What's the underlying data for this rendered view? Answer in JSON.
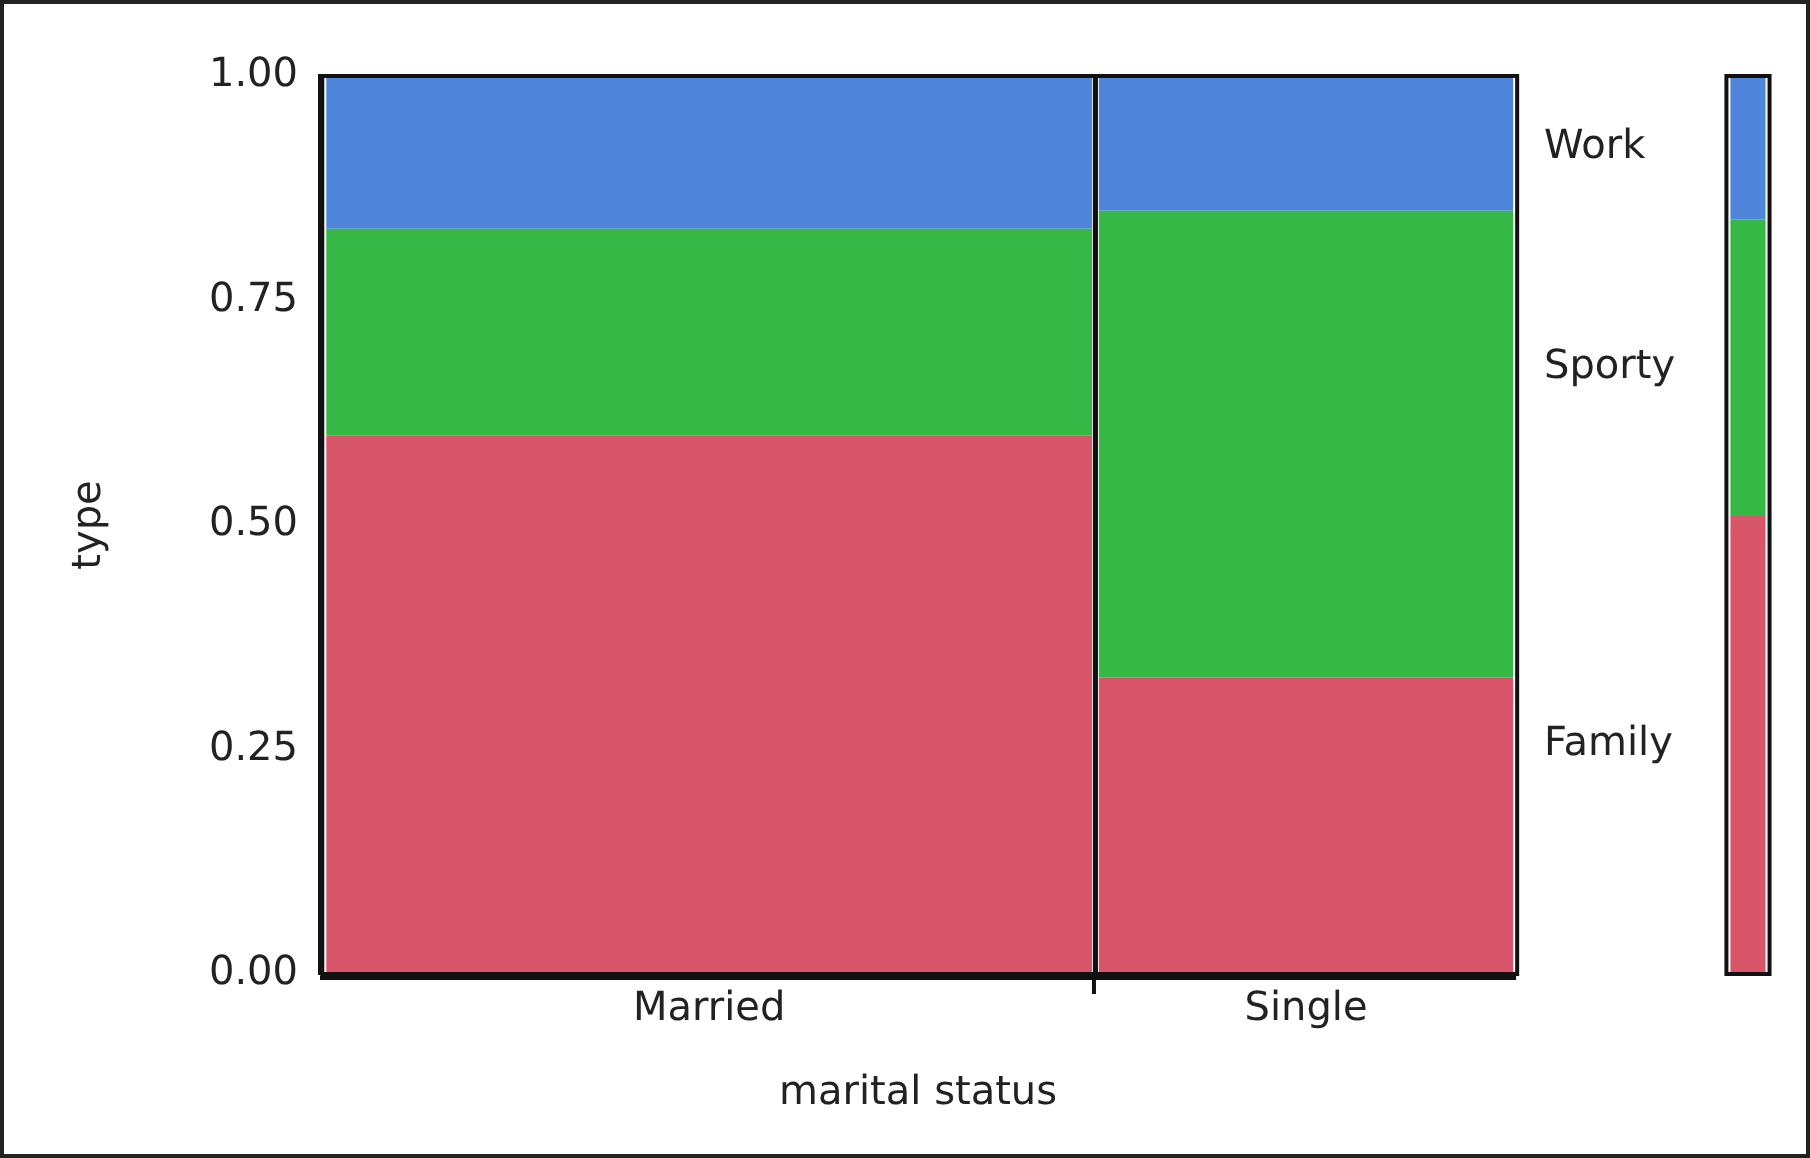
{
  "chart_data": {
    "type": "bar",
    "stacked": true,
    "xlabel": "marital status",
    "ylabel": "type",
    "categories": [
      "Married",
      "Single",
      null
    ],
    "series": [
      {
        "name": "Family",
        "color": "#d9566a",
        "values": [
          0.6,
          0.33,
          0.51
        ]
      },
      {
        "name": "Sporty",
        "color": "#35b846",
        "values": [
          0.23,
          0.52,
          0.33
        ]
      },
      {
        "name": "Work",
        "color": "#4f86dc",
        "values": [
          0.17,
          0.15,
          0.16
        ]
      }
    ],
    "ylim": [
      0,
      1
    ],
    "yticks": [
      {
        "value": 0,
        "label": "0.00"
      },
      {
        "value": 0.25,
        "label": "0.25"
      },
      {
        "value": 0.5,
        "label": "0.50"
      },
      {
        "value": 0.75,
        "label": "0.75"
      },
      {
        "value": 1,
        "label": "1.00"
      }
    ],
    "grid": false,
    "legend": false
  }
}
